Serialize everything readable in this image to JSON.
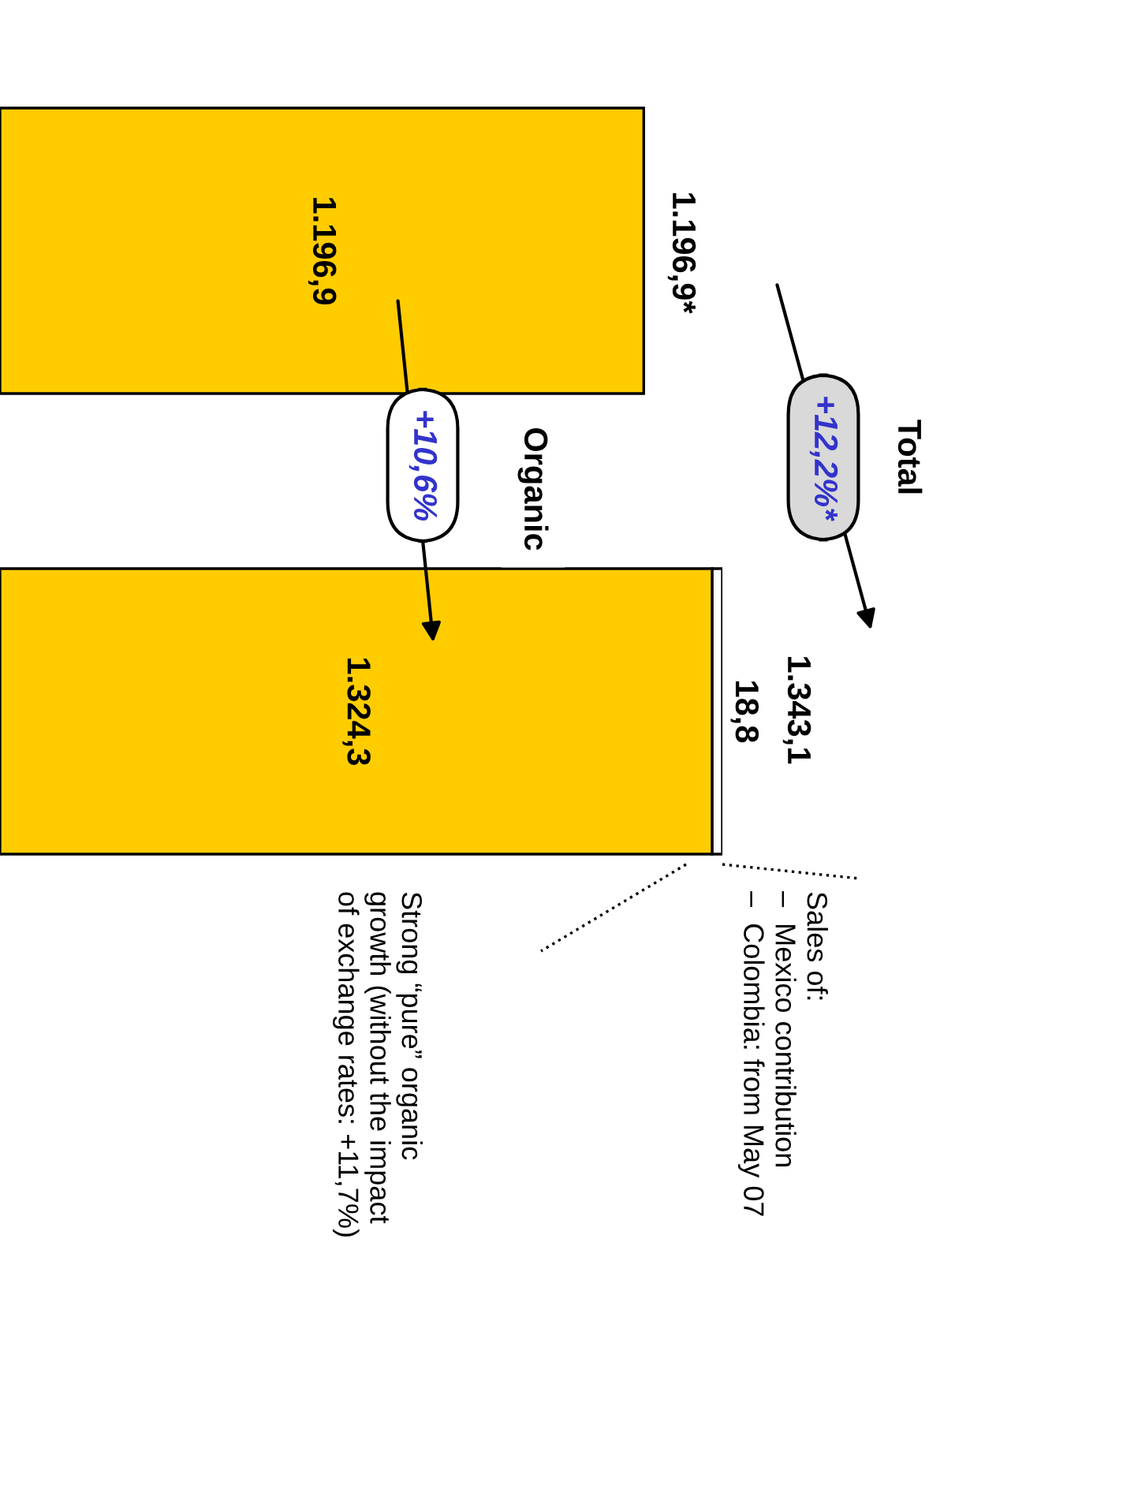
{
  "chart_data": {
    "type": "bar",
    "orientation": "horizontal",
    "stacked": true,
    "categories": [
      null,
      null
    ],
    "series": [
      {
        "color": "#ffcc00",
        "values": [
          1196.9,
          1324.3
        ],
        "value_labels": [
          "1.196,9",
          "1.324,3"
        ]
      },
      {
        "color": "#ffffff",
        "values": [
          null,
          18.8
        ],
        "value_labels": [
          null,
          "18,8"
        ]
      }
    ],
    "totals": [
      "1.196,9*",
      "1.343,1"
    ],
    "annotations": [
      "Total",
      "+12,2%*",
      "Organic",
      "+10,6%",
      "Sales of:\n–  Mexico contribution\n–  Colombia: from May 07",
      "Strong “pure” organic\ngrowth (without the impact\nof exchange rates: +11,7%)"
    ]
  }
}
